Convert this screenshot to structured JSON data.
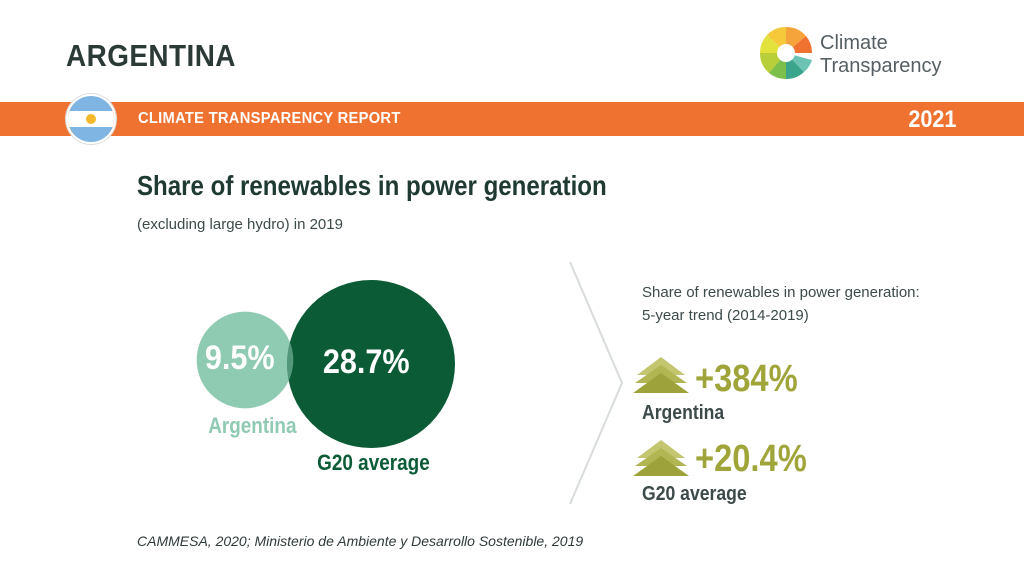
{
  "header": {
    "country": "ARGENTINA",
    "report": "CLIMATE TRANSPARENCY REPORT",
    "year": "2021",
    "logo": {
      "line1": "Climate",
      "line2": "Transparency"
    },
    "flag_icon": "argentina-flag-icon"
  },
  "chart_data": {
    "type": "bubble",
    "title": "Share of renewables in power generation",
    "subtitle": "(excluding large hydro) in 2019",
    "unit": "%",
    "series": [
      {
        "name": "Argentina",
        "value": 9.5,
        "label": "9.5%",
        "color": "#8fcab3"
      },
      {
        "name": "G20 average",
        "value": 28.7,
        "label": "28.7%",
        "color": "#0b5c36"
      }
    ]
  },
  "trend": {
    "heading_line1": "Share of renewables in power generation:",
    "heading_line2": "5-year trend (2014-2019)",
    "icon": "trend-up-icon",
    "color": "#a0a53a",
    "items": [
      {
        "value": "+384%",
        "name": "Argentina"
      },
      {
        "value": "+20.4%",
        "name": "G20 average"
      }
    ]
  },
  "source": "CAMMESA, 2020; Ministerio de Ambiente y Desarrollo Sostenible, 2019",
  "colors": {
    "accent": "#f07230",
    "title": "#1f3a33"
  }
}
